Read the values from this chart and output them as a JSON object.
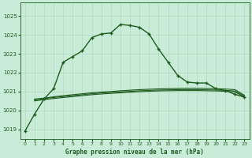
{
  "title": "Graphe pression niveau de la mer (hPa)",
  "background_color": "#c8ecd8",
  "grid_color": "#b0d8c0",
  "line_color": "#1e5c1e",
  "xlim": [
    -0.5,
    23.5
  ],
  "ylim": [
    1018.5,
    1025.7
  ],
  "yticks": [
    1019,
    1020,
    1021,
    1022,
    1023,
    1024,
    1025
  ],
  "xticks": [
    0,
    1,
    2,
    3,
    4,
    5,
    6,
    7,
    8,
    9,
    10,
    11,
    12,
    13,
    14,
    15,
    16,
    17,
    18,
    19,
    20,
    21,
    22,
    23
  ],
  "main_line_x": [
    0,
    1,
    2,
    3,
    4,
    5,
    6,
    7,
    8,
    9,
    10,
    11,
    12,
    13,
    14,
    15,
    16,
    17,
    18,
    19,
    20,
    21,
    22,
    23
  ],
  "main_line_y": [
    1018.9,
    1019.8,
    1020.6,
    1021.15,
    1022.55,
    1022.85,
    1023.15,
    1023.85,
    1024.05,
    1024.1,
    1024.55,
    1024.5,
    1024.4,
    1024.05,
    1023.25,
    1022.55,
    1021.85,
    1021.5,
    1021.45,
    1021.45,
    1021.15,
    1021.05,
    1020.85,
    1020.7
  ],
  "flat_line1_x": [
    1,
    2,
    3,
    4,
    5,
    6,
    7,
    8,
    9,
    10,
    11,
    12,
    13,
    14,
    15,
    16,
    17,
    18,
    19,
    20,
    21,
    22,
    23
  ],
  "flat_line1_y": [
    1020.6,
    1020.65,
    1020.72,
    1020.78,
    1020.83,
    1020.88,
    1020.93,
    1020.97,
    1021.0,
    1021.04,
    1021.07,
    1021.1,
    1021.12,
    1021.14,
    1021.15,
    1021.16,
    1021.17,
    1021.17,
    1021.16,
    1021.15,
    1021.13,
    1021.1,
    1020.8
  ],
  "flat_line2_x": [
    1,
    2,
    3,
    4,
    5,
    6,
    7,
    8,
    9,
    10,
    11,
    12,
    13,
    14,
    15,
    16,
    17,
    18,
    19,
    20,
    21,
    22,
    23
  ],
  "flat_line2_y": [
    1020.55,
    1020.62,
    1020.68,
    1020.73,
    1020.78,
    1020.83,
    1020.88,
    1020.92,
    1020.95,
    1020.98,
    1021.01,
    1021.04,
    1021.06,
    1021.08,
    1021.09,
    1021.1,
    1021.1,
    1021.1,
    1021.09,
    1021.08,
    1021.06,
    1021.03,
    1020.75
  ],
  "flat_line3_x": [
    1,
    2,
    3,
    4,
    5,
    6,
    7,
    8,
    9,
    10,
    11,
    12,
    13,
    14,
    15,
    16,
    17,
    18,
    19,
    20,
    21,
    22,
    23
  ],
  "flat_line3_y": [
    1020.5,
    1020.57,
    1020.63,
    1020.68,
    1020.73,
    1020.78,
    1020.83,
    1020.87,
    1020.9,
    1020.93,
    1020.96,
    1020.99,
    1021.01,
    1021.03,
    1021.04,
    1021.05,
    1021.05,
    1021.05,
    1021.04,
    1021.03,
    1021.01,
    1020.98,
    1020.7
  ]
}
